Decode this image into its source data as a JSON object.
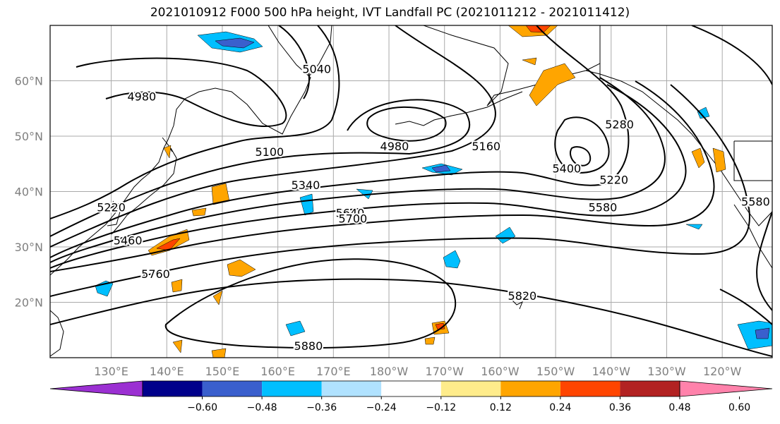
{
  "title": "2021010912 F000 500 hPa height, IVT Landfall PC (2021011212 - 2021011412)",
  "map": {
    "lon_ticks": [
      "130°E",
      "140°E",
      "150°E",
      "160°E",
      "170°E",
      "180°W",
      "170°W",
      "160°W",
      "150°W",
      "140°W",
      "130°W",
      "120°W"
    ],
    "lat_ticks": [
      "60°N",
      "50°N",
      "40°N",
      "30°N",
      "20°N"
    ],
    "lon_tick_values": [
      130,
      140,
      150,
      160,
      170,
      180,
      190,
      200,
      210,
      220,
      230,
      240
    ],
    "lat_tick_values": [
      60,
      50,
      40,
      30,
      20
    ],
    "lon_range_deg": [
      119,
      249
    ],
    "lat_range": [
      10,
      70
    ],
    "grid": true,
    "land_color": "#ffffff",
    "coastline_color": "#000000",
    "contour_labels": [
      {
        "text": "4980",
        "lon": 135.5,
        "lat": 57
      },
      {
        "text": "5040",
        "lon": 167,
        "lat": 62
      },
      {
        "text": "4980",
        "lon": 181,
        "lat": 48
      },
      {
        "text": "5100",
        "lon": 158.5,
        "lat": 47
      },
      {
        "text": "5160",
        "lon": 197.5,
        "lat": 48
      },
      {
        "text": "5280",
        "lon": 221.5,
        "lat": 52
      },
      {
        "text": "5400",
        "lon": 212,
        "lat": 44
      },
      {
        "text": "5220",
        "lon": 220.5,
        "lat": 42
      },
      {
        "text": "5340",
        "lon": 165,
        "lat": 41
      },
      {
        "text": "5220",
        "lon": 130,
        "lat": 37
      },
      {
        "text": "5640",
        "lon": 173,
        "lat": 36
      },
      {
        "text": "5700",
        "lon": 173.5,
        "lat": 35
      },
      {
        "text": "5580",
        "lon": 218.5,
        "lat": 37
      },
      {
        "text": "5460",
        "lon": 133,
        "lat": 31
      },
      {
        "text": "5760",
        "lon": 138,
        "lat": 25
      },
      {
        "text": "5820",
        "lon": 204,
        "lat": 21
      },
      {
        "text": "5880",
        "lon": 165.5,
        "lat": 12
      },
      {
        "text": "5580",
        "lon": 246,
        "lat": 38
      }
    ]
  },
  "colorbar": {
    "colors": [
      "#9b30d2",
      "#00008b",
      "#3a5fcd",
      "#00bfff",
      "#b0e2ff",
      "#ffffff",
      "#ffec8b",
      "#ffa500",
      "#ff4500",
      "#b22222",
      "#ff82ab"
    ],
    "tick_labels": [
      "−0.60",
      "−0.48",
      "−0.36",
      "−0.24",
      "−0.12",
      "0.12",
      "0.24",
      "0.36",
      "0.48",
      "0.60"
    ],
    "tick_values": [
      -0.6,
      -0.48,
      -0.36,
      -0.24,
      -0.12,
      0.12,
      0.24,
      0.36,
      0.48,
      0.6
    ]
  }
}
